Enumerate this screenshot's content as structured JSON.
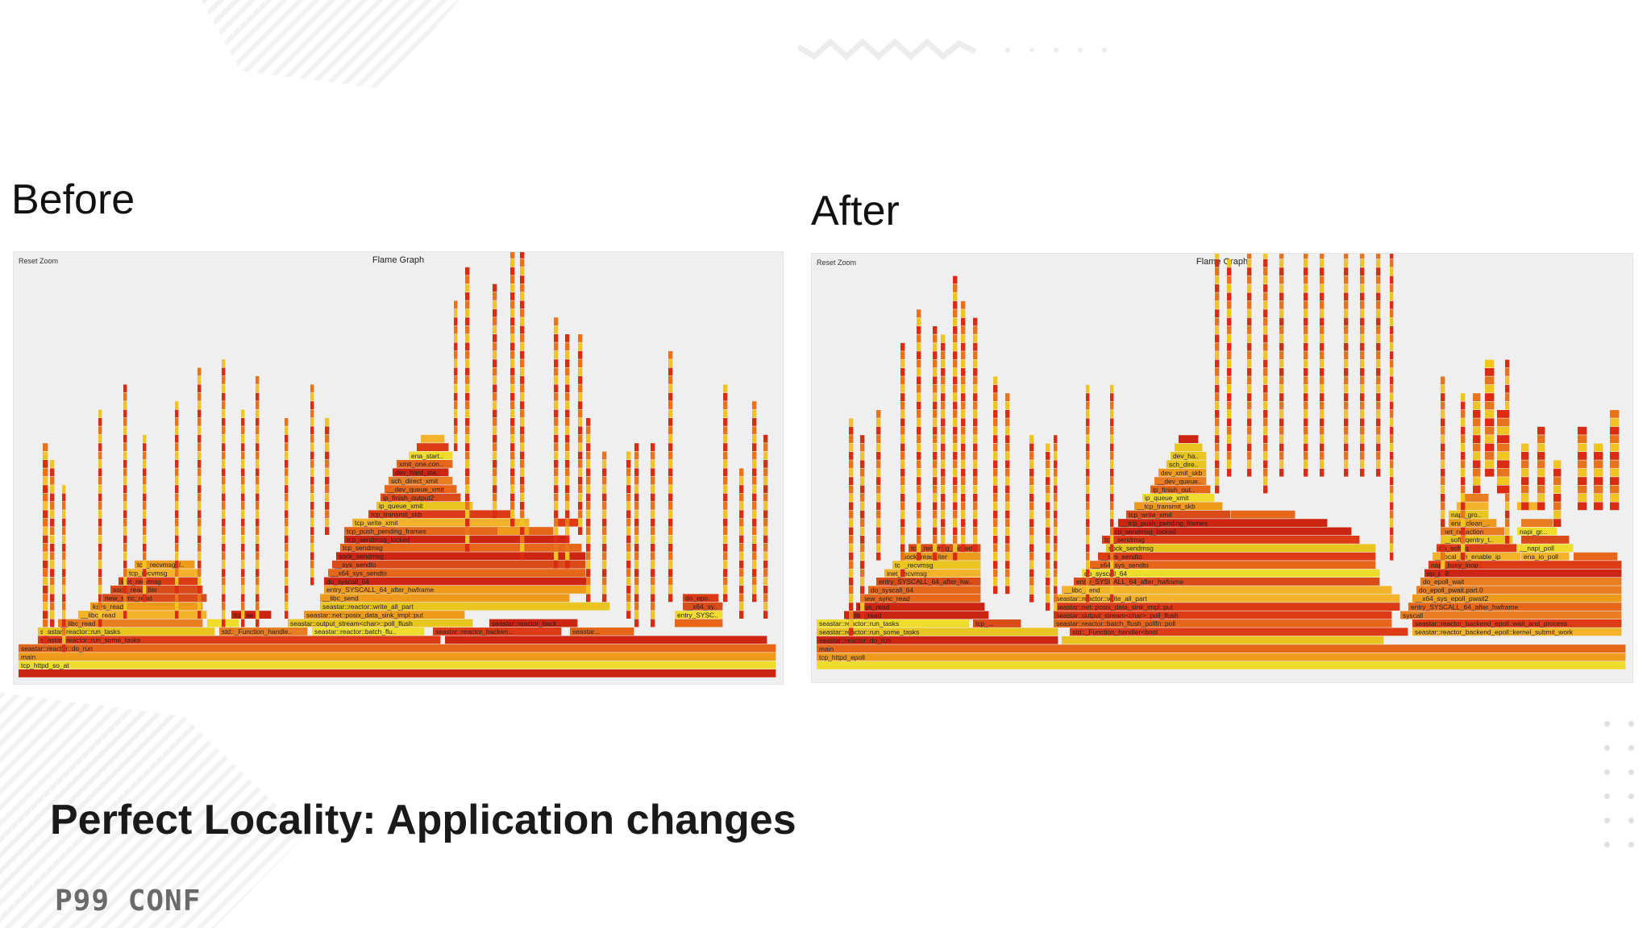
{
  "slide": {
    "before_label": "Before",
    "after_label": "After",
    "subtitle": "Perfect Locality: Application changes",
    "logo": "P99 CONF"
  },
  "before_graph": {
    "title": "Flame Graph",
    "reset_zoom": "Reset Zoom",
    "frame_labels": [
      "tcp_httpd_so_at",
      "main",
      "seastar::reactor::do_run",
      "seastar::reactor::run_some_tasks",
      "seastar::reactor::run_tasks",
      "__libc_read",
      "ksys_read",
      "new_sync_read",
      "sock_read_iter",
      "inet_recvmsg",
      "tcp_recvmsg",
      "tcp_recvmsg_locked",
      "std::_Function_handler<bool",
      "seastar::reactor::batch_flush_pollfn::poll",
      "seastar::output_stream<char>::poll_flush",
      "seastar::net::posix_data_sink_impl::put",
      "seastar::reactor::write_all_part",
      "__libc_send",
      "entry_SYSCALL_64_after_hwframe",
      "do_syscall_64",
      "__x64_sys_sendto",
      "__sys_sendto",
      "sock_sendmsg",
      "tcp_sendmsg",
      "tcp_sendmsg_locked",
      "tcp_push_pending_frames",
      "tcp_write_xmit",
      "tcp_transmit_skb",
      "ip_queue_xmit",
      "ip_finish_output2",
      "__dev_queue_xmit",
      "sch_direct_xmit",
      "dev_hard_start_xmit",
      "xmit_one.constprop",
      "ena_start_xmit",
      "ena_...",
      "entry_SYSCALL...",
      "seastar::reactor_backe...",
      "seastar::reactor_backen...",
      "do_epoll...",
      "__x64_sys...",
      "seastar...",
      "ep...",
      "tcp_se...",
      "tcp..."
    ]
  },
  "after_graph": {
    "title": "Flame Graph",
    "reset_zoom": "Reset Zoom",
    "frame_labels": [
      "tcp_httpd_epoll",
      "main",
      "seastar::reactor::do_run",
      "seastar::reactor::run_some_tasks",
      "seastar::reactor::run_tasks",
      "__libc_read",
      "new_sync_read",
      "ksys_read",
      "do_syscall_64",
      "entry_SYSCALL_64_after_hwfr...",
      "inet_recvmsg",
      "tcp_recvmsg",
      "sock_read_iter",
      "tcp_recvmsg_locked",
      "std::_Function_handler<bool",
      "seastar::reactor::batch_flush_pollfn::poll",
      "seastar::output_stream<char>::poll_flush",
      "seastar::net::posix_data_sink_impl::put",
      "seastar::reactor::write_all_part",
      "__libc_send",
      "entry_SYSCALL_64_after_hwframe",
      "do_syscall_64",
      "__x64_sys_sendto",
      "__sys_sendto",
      "sock_sendmsg",
      "tcp_sendmsg",
      "tcp_sendmsg_locked",
      "__tcp_push_pending_frames",
      "tcp_write_xmit",
      "__tcp_transmit_skb",
      "ip_queue_xmit",
      "ip_finish_output2",
      "__dev_queue_xmit",
      "dev_xmit_skb",
      "sch_direct_xmit",
      "dev_hard_star...",
      "xmit_one.const...",
      "ena_start_xmit",
      "ena...",
      "seastar::reactor_backend_epoll::kernel_submit_work",
      "seastar::reactor_backend_epoll::wait_and_process",
      "syscall",
      "entry_SYSCALL_64_after_hwframe",
      "__x64_sys_epoll_pwait2",
      "do_epoll_pwait.part.0",
      "do_epoll_wait",
      "ep_poll",
      "napi_busy_loop",
      "__local_bh_enable_ip",
      "do_softirq",
      "__softirqentry_text_start",
      "net_rx_action",
      "__napi_poll",
      "ena_io_poll",
      "busy_poll_stop",
      "napi_gr...",
      "gro_no...",
      "netif_re...",
      "__netif_r...",
      "ip_rcv",
      "ip_loc...",
      "ena_clean_rx_irq",
      "napi_gro...",
      "net...",
      "ip_list_rcv",
      "tcp_v4...",
      "tcp_...",
      "seastar::continuat...",
      "seas...",
      "tcp_se..."
    ]
  }
}
